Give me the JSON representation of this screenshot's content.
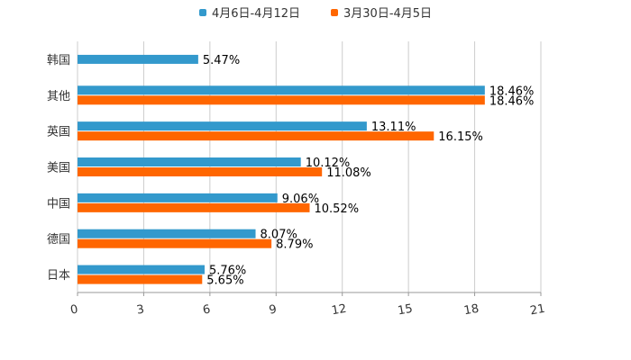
{
  "chart_data": {
    "type": "bar",
    "orientation": "horizontal",
    "categories": [
      "韩国",
      "其他",
      "英国",
      "美国",
      "中国",
      "德国",
      "日本"
    ],
    "series": [
      {
        "name": "4月6日-4月12日",
        "color": "#3399cc",
        "values": [
          5.47,
          18.46,
          13.11,
          10.12,
          9.06,
          8.07,
          5.76
        ],
        "labels": [
          "5.47%",
          "18.46%",
          "13.11%",
          "10.12%",
          "9.06%",
          "8.07%",
          "5.76%"
        ]
      },
      {
        "name": "3月30日-4月5日",
        "color": "#ff6600",
        "values": [
          null,
          18.46,
          16.15,
          11.08,
          10.52,
          8.79,
          5.65
        ],
        "labels": [
          "",
          "18.46%",
          "16.15%",
          "11.08%",
          "10.52%",
          "8.79%",
          "5.65%"
        ]
      }
    ],
    "xlim": [
      0,
      21
    ],
    "xticks": [
      "0",
      "3",
      "6",
      "9",
      "12",
      "15",
      "18",
      "21"
    ],
    "title": "",
    "xlabel": "",
    "ylabel": "",
    "grid": true,
    "legend_position": "top-center"
  }
}
